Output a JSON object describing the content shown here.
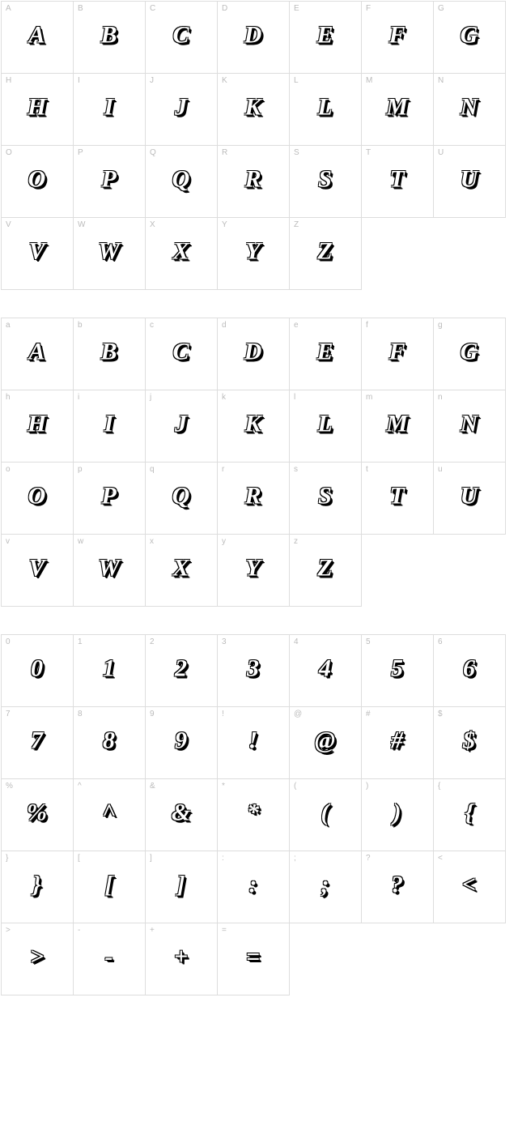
{
  "sections": [
    {
      "cells": [
        {
          "label": "A",
          "glyph": "A"
        },
        {
          "label": "B",
          "glyph": "B"
        },
        {
          "label": "C",
          "glyph": "C"
        },
        {
          "label": "D",
          "glyph": "D"
        },
        {
          "label": "E",
          "glyph": "E"
        },
        {
          "label": "F",
          "glyph": "F"
        },
        {
          "label": "G",
          "glyph": "G"
        },
        {
          "label": "H",
          "glyph": "H"
        },
        {
          "label": "I",
          "glyph": "I"
        },
        {
          "label": "J",
          "glyph": "J"
        },
        {
          "label": "K",
          "glyph": "K"
        },
        {
          "label": "L",
          "glyph": "L"
        },
        {
          "label": "M",
          "glyph": "M"
        },
        {
          "label": "N",
          "glyph": "N"
        },
        {
          "label": "O",
          "glyph": "O"
        },
        {
          "label": "P",
          "glyph": "P"
        },
        {
          "label": "Q",
          "glyph": "Q"
        },
        {
          "label": "R",
          "glyph": "R"
        },
        {
          "label": "S",
          "glyph": "S"
        },
        {
          "label": "T",
          "glyph": "T"
        },
        {
          "label": "U",
          "glyph": "U"
        },
        {
          "label": "V",
          "glyph": "V"
        },
        {
          "label": "W",
          "glyph": "W"
        },
        {
          "label": "X",
          "glyph": "X"
        },
        {
          "label": "Y",
          "glyph": "Y"
        },
        {
          "label": "Z",
          "glyph": "Z"
        }
      ]
    },
    {
      "cells": [
        {
          "label": "a",
          "glyph": "A"
        },
        {
          "label": "b",
          "glyph": "B"
        },
        {
          "label": "c",
          "glyph": "C"
        },
        {
          "label": "d",
          "glyph": "D"
        },
        {
          "label": "e",
          "glyph": "E"
        },
        {
          "label": "f",
          "glyph": "F"
        },
        {
          "label": "g",
          "glyph": "G"
        },
        {
          "label": "h",
          "glyph": "H"
        },
        {
          "label": "i",
          "glyph": "I"
        },
        {
          "label": "j",
          "glyph": "J"
        },
        {
          "label": "k",
          "glyph": "K"
        },
        {
          "label": "l",
          "glyph": "L"
        },
        {
          "label": "m",
          "glyph": "M"
        },
        {
          "label": "n",
          "glyph": "N"
        },
        {
          "label": "o",
          "glyph": "O"
        },
        {
          "label": "p",
          "glyph": "P"
        },
        {
          "label": "q",
          "glyph": "Q"
        },
        {
          "label": "r",
          "glyph": "R"
        },
        {
          "label": "s",
          "glyph": "S"
        },
        {
          "label": "t",
          "glyph": "T"
        },
        {
          "label": "u",
          "glyph": "U"
        },
        {
          "label": "v",
          "glyph": "V"
        },
        {
          "label": "w",
          "glyph": "W"
        },
        {
          "label": "x",
          "glyph": "X"
        },
        {
          "label": "y",
          "glyph": "Y"
        },
        {
          "label": "z",
          "glyph": "Z"
        }
      ]
    },
    {
      "cells": [
        {
          "label": "0",
          "glyph": "0"
        },
        {
          "label": "1",
          "glyph": "1"
        },
        {
          "label": "2",
          "glyph": "2"
        },
        {
          "label": "3",
          "glyph": "3"
        },
        {
          "label": "4",
          "glyph": "4"
        },
        {
          "label": "5",
          "glyph": "5"
        },
        {
          "label": "6",
          "glyph": "6"
        },
        {
          "label": "7",
          "glyph": "7"
        },
        {
          "label": "8",
          "glyph": "8"
        },
        {
          "label": "9",
          "glyph": "9"
        },
        {
          "label": "!",
          "glyph": "!"
        },
        {
          "label": "@",
          "glyph": "@"
        },
        {
          "label": "#",
          "glyph": "#"
        },
        {
          "label": "$",
          "glyph": "$"
        },
        {
          "label": "%",
          "glyph": "%"
        },
        {
          "label": "^",
          "glyph": "^"
        },
        {
          "label": "&",
          "glyph": "&"
        },
        {
          "label": "*",
          "glyph": "*"
        },
        {
          "label": "(",
          "glyph": "("
        },
        {
          "label": ")",
          "glyph": ")"
        },
        {
          "label": "{",
          "glyph": "{"
        },
        {
          "label": "}",
          "glyph": "}"
        },
        {
          "label": "[",
          "glyph": "["
        },
        {
          "label": "]",
          "glyph": "]"
        },
        {
          "label": ":",
          "glyph": ":"
        },
        {
          "label": ";",
          "glyph": ";"
        },
        {
          "label": "?",
          "glyph": "?"
        },
        {
          "label": "<",
          "glyph": "<"
        },
        {
          "label": ">",
          "glyph": ">"
        },
        {
          "label": "-",
          "glyph": "-"
        },
        {
          "label": "+",
          "glyph": "+"
        },
        {
          "label": "=",
          "glyph": "="
        }
      ]
    }
  ],
  "colors": {
    "border": "#dddddd",
    "label": "#bbbbbb",
    "background": "#ffffff",
    "glyph_fill": "#ffffff",
    "glyph_outline": "#000000"
  },
  "cell_size": 90,
  "columns": 7
}
